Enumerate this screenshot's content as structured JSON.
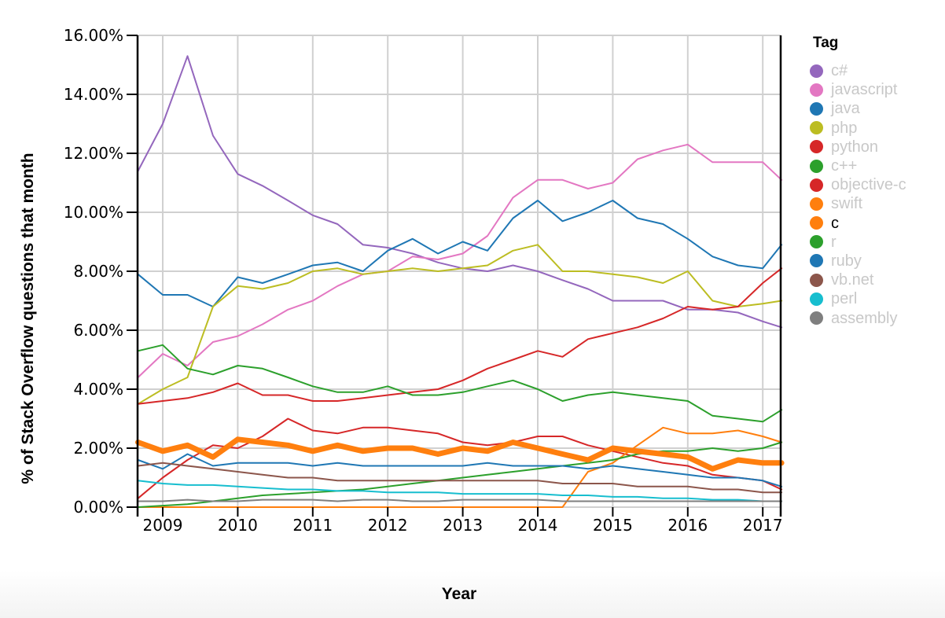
{
  "chart_data": {
    "type": "line",
    "title": "",
    "xlabel": "Year",
    "ylabel": "% of Stack Overflow questions that month",
    "ylim": [
      0,
      16
    ],
    "xlim": [
      2008.67,
      2017.25
    ],
    "grid": true,
    "legend_position": "right",
    "legend_title": "Tag",
    "highlighted_series": "c",
    "x_ticks": [
      "2009",
      "2010",
      "2011",
      "2012",
      "2013",
      "2014",
      "2015",
      "2016",
      "2017"
    ],
    "y_ticks": [
      "0.00%",
      "2.00%",
      "4.00%",
      "6.00%",
      "8.00%",
      "10.00%",
      "12.00%",
      "14.00%",
      "16.00%"
    ],
    "x": [
      2008.67,
      2009.0,
      2009.33,
      2009.67,
      2010.0,
      2010.33,
      2010.67,
      2011.0,
      2011.33,
      2011.67,
      2012.0,
      2012.33,
      2012.67,
      2013.0,
      2013.33,
      2013.67,
      2014.0,
      2014.33,
      2014.67,
      2015.0,
      2015.33,
      2015.67,
      2016.0,
      2016.33,
      2016.67,
      2017.0,
      2017.25
    ],
    "series": [
      {
        "name": "c#",
        "color": "#9467bd",
        "values": [
          11.4,
          13.0,
          15.3,
          12.6,
          11.3,
          10.9,
          10.4,
          9.9,
          9.6,
          8.9,
          8.8,
          8.6,
          8.3,
          8.1,
          8.0,
          8.2,
          8.0,
          7.7,
          7.4,
          7.0,
          7.0,
          7.0,
          6.7,
          6.7,
          6.6,
          6.3,
          6.1
        ]
      },
      {
        "name": "javascript",
        "color": "#e377c2",
        "values": [
          4.4,
          5.2,
          4.8,
          5.6,
          5.8,
          6.2,
          6.7,
          7.0,
          7.5,
          7.9,
          8.0,
          8.5,
          8.4,
          8.6,
          9.2,
          10.5,
          11.1,
          11.1,
          10.8,
          11.0,
          11.8,
          12.1,
          12.3,
          11.7,
          11.7,
          11.7,
          11.1
        ]
      },
      {
        "name": "java",
        "color": "#1f77b4",
        "values": [
          7.9,
          7.2,
          7.2,
          6.8,
          7.8,
          7.6,
          7.9,
          8.2,
          8.3,
          8.0,
          8.7,
          9.1,
          8.6,
          9.0,
          8.7,
          9.8,
          10.4,
          9.7,
          10.0,
          10.4,
          9.8,
          9.6,
          9.1,
          8.5,
          8.2,
          8.1,
          8.9
        ]
      },
      {
        "name": "php",
        "color": "#bcbd22",
        "values": [
          3.5,
          4.0,
          4.4,
          6.8,
          7.5,
          7.4,
          7.6,
          8.0,
          8.1,
          7.9,
          8.0,
          8.1,
          8.0,
          8.1,
          8.2,
          8.7,
          8.9,
          8.0,
          8.0,
          7.9,
          7.8,
          7.6,
          8.0,
          7.0,
          6.8,
          6.9,
          7.0
        ]
      },
      {
        "name": "python",
        "color": "#d62728",
        "values": [
          3.5,
          3.6,
          3.7,
          3.9,
          4.2,
          3.8,
          3.8,
          3.6,
          3.6,
          3.7,
          3.8,
          3.9,
          4.0,
          4.3,
          4.7,
          5.0,
          5.3,
          5.1,
          5.7,
          5.9,
          6.1,
          6.4,
          6.8,
          6.7,
          6.8,
          7.6,
          8.1
        ]
      },
      {
        "name": "c++",
        "color": "#2ca02c",
        "values": [
          5.3,
          5.5,
          4.7,
          4.5,
          4.8,
          4.7,
          4.4,
          4.1,
          3.9,
          3.9,
          4.1,
          3.8,
          3.8,
          3.9,
          4.1,
          4.3,
          4.0,
          3.6,
          3.8,
          3.9,
          3.8,
          3.7,
          3.6,
          3.1,
          3.0,
          2.9,
          3.3
        ]
      },
      {
        "name": "objective-c",
        "color": "#d62728",
        "values": [
          0.3,
          1.0,
          1.6,
          2.1,
          2.0,
          2.4,
          3.0,
          2.6,
          2.5,
          2.7,
          2.7,
          2.6,
          2.5,
          2.2,
          2.1,
          2.2,
          2.4,
          2.4,
          2.1,
          1.9,
          1.7,
          1.5,
          1.4,
          1.1,
          1.0,
          0.9,
          0.6
        ]
      },
      {
        "name": "swift",
        "color": "#ff7f0e",
        "values": [
          0,
          0,
          0,
          0,
          0,
          0,
          0,
          0,
          0,
          0,
          0,
          0,
          0,
          0,
          0,
          0,
          0,
          0,
          1.2,
          1.5,
          2.1,
          2.7,
          2.5,
          2.5,
          2.6,
          2.4,
          2.2
        ]
      },
      {
        "name": "c",
        "color": "#ff7f0e",
        "values": [
          2.2,
          1.9,
          2.1,
          1.7,
          2.3,
          2.2,
          2.1,
          1.9,
          2.1,
          1.9,
          2.0,
          2.0,
          1.8,
          2.0,
          1.9,
          2.2,
          2.0,
          1.8,
          1.6,
          2.0,
          1.9,
          1.8,
          1.7,
          1.3,
          1.6,
          1.5,
          1.5
        ]
      },
      {
        "name": "r",
        "color": "#2ca02c",
        "values": [
          0.0,
          0.05,
          0.1,
          0.2,
          0.3,
          0.4,
          0.45,
          0.5,
          0.55,
          0.6,
          0.7,
          0.8,
          0.9,
          1.0,
          1.1,
          1.2,
          1.3,
          1.4,
          1.5,
          1.6,
          1.8,
          1.9,
          1.9,
          2.0,
          1.9,
          2.0,
          2.2
        ]
      },
      {
        "name": "ruby",
        "color": "#1f77b4",
        "values": [
          1.6,
          1.3,
          1.8,
          1.4,
          1.5,
          1.5,
          1.5,
          1.4,
          1.5,
          1.4,
          1.4,
          1.4,
          1.4,
          1.4,
          1.5,
          1.4,
          1.4,
          1.4,
          1.3,
          1.4,
          1.3,
          1.2,
          1.1,
          1.0,
          1.0,
          0.9,
          0.7
        ]
      },
      {
        "name": "vb.net",
        "color": "#8c564b",
        "values": [
          1.4,
          1.5,
          1.4,
          1.3,
          1.2,
          1.1,
          1.0,
          1.0,
          0.9,
          0.9,
          0.9,
          0.9,
          0.9,
          0.9,
          0.9,
          0.9,
          0.9,
          0.8,
          0.8,
          0.8,
          0.7,
          0.7,
          0.7,
          0.6,
          0.6,
          0.5,
          0.5
        ]
      },
      {
        "name": "perl",
        "color": "#17becf",
        "values": [
          0.9,
          0.8,
          0.75,
          0.75,
          0.7,
          0.65,
          0.6,
          0.6,
          0.55,
          0.55,
          0.5,
          0.5,
          0.5,
          0.45,
          0.45,
          0.45,
          0.45,
          0.4,
          0.4,
          0.35,
          0.35,
          0.3,
          0.3,
          0.25,
          0.25,
          0.2,
          0.2
        ]
      },
      {
        "name": "assembly",
        "color": "#7f7f7f",
        "values": [
          0.2,
          0.2,
          0.25,
          0.2,
          0.2,
          0.25,
          0.25,
          0.25,
          0.2,
          0.25,
          0.25,
          0.2,
          0.2,
          0.25,
          0.25,
          0.25,
          0.25,
          0.2,
          0.2,
          0.2,
          0.2,
          0.2,
          0.2,
          0.2,
          0.2,
          0.2,
          0.2
        ]
      }
    ]
  },
  "axes": {
    "x_title": "Year",
    "y_title": "% of Stack Overflow questions that month"
  },
  "legend": {
    "title": "Tag",
    "items": [
      {
        "label": "c#",
        "color": "#9467bd",
        "active": false
      },
      {
        "label": "javascript",
        "color": "#e377c2",
        "active": false
      },
      {
        "label": "java",
        "color": "#1f77b4",
        "active": false
      },
      {
        "label": "php",
        "color": "#bcbd22",
        "active": false
      },
      {
        "label": "python",
        "color": "#d62728",
        "active": false
      },
      {
        "label": "c++",
        "color": "#2ca02c",
        "active": false
      },
      {
        "label": "objective-c",
        "color": "#d62728",
        "active": false
      },
      {
        "label": "swift",
        "color": "#ff7f0e",
        "active": false
      },
      {
        "label": "c",
        "color": "#ff7f0e",
        "active": true
      },
      {
        "label": "r",
        "color": "#2ca02c",
        "active": false
      },
      {
        "label": "ruby",
        "color": "#1f77b4",
        "active": false
      },
      {
        "label": "vb.net",
        "color": "#8c564b",
        "active": false
      },
      {
        "label": "perl",
        "color": "#17becf",
        "active": false
      },
      {
        "label": "assembly",
        "color": "#7f7f7f",
        "active": false
      }
    ]
  }
}
